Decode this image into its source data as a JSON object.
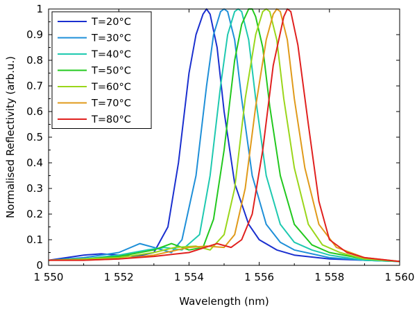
{
  "chart_data": {
    "type": "line",
    "title": "",
    "xlabel": "Wavelength (nm)",
    "ylabel": "Normalised Reflectivity (arb.u.)",
    "xlim": [
      1550,
      1560
    ],
    "ylim": [
      0,
      1
    ],
    "x_ticks": [
      1550,
      1552,
      1554,
      1556,
      1558,
      1560
    ],
    "x_tick_labels": [
      "1 550",
      "1 552",
      "1 554",
      "1 556",
      "1 558",
      "1 560"
    ],
    "y_ticks": [
      0,
      0.1,
      0.2,
      0.3,
      0.4,
      0.5,
      0.6,
      0.7,
      0.8,
      0.9,
      1
    ],
    "y_tick_labels": [
      "0",
      "0.1",
      "0.2",
      "0.3",
      "0.4",
      "0.5",
      "0.6",
      "0.7",
      "0.8",
      "0.9",
      "1"
    ],
    "grid": false,
    "legend_position": "top-left",
    "series": [
      {
        "name": "T=20°C",
        "color": "#1a2fcf",
        "x": [
          1550,
          1551,
          1551.5,
          1552,
          1552.5,
          1553,
          1553.4,
          1553.7,
          1554,
          1554.2,
          1554.4,
          1554.5,
          1554.6,
          1554.8,
          1555,
          1555.3,
          1555.7,
          1556,
          1556.5,
          1557,
          1558,
          1559,
          1560
        ],
        "y": [
          0.02,
          0.04,
          0.045,
          0.04,
          0.035,
          0.05,
          0.15,
          0.4,
          0.75,
          0.9,
          0.98,
          1.0,
          0.98,
          0.85,
          0.6,
          0.32,
          0.16,
          0.1,
          0.06,
          0.04,
          0.025,
          0.02,
          0.015
        ]
      },
      {
        "name": "T=30°C",
        "color": "#1e8fd8",
        "x": [
          1550,
          1551,
          1552,
          1552.6,
          1553,
          1553.5,
          1553.8,
          1554.2,
          1554.5,
          1554.7,
          1554.9,
          1555,
          1555.1,
          1555.3,
          1555.5,
          1555.8,
          1556.2,
          1556.6,
          1557,
          1558,
          1559,
          1560
        ],
        "y": [
          0.02,
          0.03,
          0.05,
          0.085,
          0.07,
          0.05,
          0.1,
          0.35,
          0.7,
          0.9,
          0.99,
          1.0,
          0.99,
          0.88,
          0.65,
          0.35,
          0.16,
          0.09,
          0.06,
          0.03,
          0.02,
          0.015
        ]
      },
      {
        "name": "T=40°C",
        "color": "#1ec9b0",
        "x": [
          1550,
          1551,
          1552,
          1552.8,
          1553.3,
          1553.8,
          1554.3,
          1554.6,
          1554.9,
          1555.1,
          1555.3,
          1555.4,
          1555.5,
          1555.7,
          1555.9,
          1556.2,
          1556.6,
          1557,
          1557.5,
          1558,
          1559,
          1560
        ],
        "y": [
          0.02,
          0.025,
          0.04,
          0.06,
          0.07,
          0.06,
          0.12,
          0.35,
          0.7,
          0.9,
          0.99,
          1.0,
          0.99,
          0.88,
          0.65,
          0.35,
          0.16,
          0.09,
          0.06,
          0.04,
          0.02,
          0.015
        ]
      },
      {
        "name": "T=50°C",
        "color": "#22c81e",
        "x": [
          1550,
          1551,
          1552,
          1553,
          1553.5,
          1554,
          1554.4,
          1554.7,
          1555,
          1555.3,
          1555.5,
          1555.7,
          1555.8,
          1555.9,
          1556.1,
          1556.3,
          1556.6,
          1557,
          1557.5,
          1558,
          1559,
          1560
        ],
        "y": [
          0.02,
          0.025,
          0.035,
          0.06,
          0.085,
          0.06,
          0.07,
          0.18,
          0.45,
          0.8,
          0.94,
          1.0,
          1.0,
          0.97,
          0.85,
          0.62,
          0.35,
          0.16,
          0.08,
          0.05,
          0.025,
          0.015
        ]
      },
      {
        "name": "T=60°C",
        "color": "#9ad61a",
        "x": [
          1550,
          1551,
          1552,
          1553,
          1553.6,
          1554.2,
          1554.6,
          1555,
          1555.3,
          1555.6,
          1555.9,
          1556.1,
          1556.2,
          1556.3,
          1556.5,
          1556.7,
          1557,
          1557.4,
          1557.8,
          1558.3,
          1559,
          1560
        ],
        "y": [
          0.02,
          0.025,
          0.03,
          0.05,
          0.07,
          0.075,
          0.06,
          0.12,
          0.3,
          0.65,
          0.9,
          0.99,
          1.0,
          0.99,
          0.88,
          0.65,
          0.38,
          0.16,
          0.08,
          0.05,
          0.025,
          0.015
        ]
      },
      {
        "name": "T=70°C",
        "color": "#e09a1a",
        "x": [
          1550,
          1551,
          1552,
          1553,
          1554,
          1554.5,
          1555,
          1555.3,
          1555.6,
          1555.9,
          1556.2,
          1556.4,
          1556.5,
          1556.6,
          1556.8,
          1557,
          1557.3,
          1557.7,
          1558.2,
          1559,
          1560
        ],
        "y": [
          0.02,
          0.02,
          0.025,
          0.04,
          0.07,
          0.075,
          0.07,
          0.12,
          0.3,
          0.62,
          0.88,
          0.98,
          1.0,
          0.99,
          0.88,
          0.65,
          0.38,
          0.16,
          0.07,
          0.03,
          0.015
        ]
      },
      {
        "name": "T=80°C",
        "color": "#e0201e",
        "x": [
          1550,
          1551,
          1552,
          1553,
          1554,
          1554.8,
          1555.2,
          1555.5,
          1555.8,
          1556.1,
          1556.4,
          1556.7,
          1556.8,
          1556.9,
          1557.1,
          1557.4,
          1557.7,
          1558,
          1558.5,
          1559,
          1560
        ],
        "y": [
          0.02,
          0.02,
          0.025,
          0.035,
          0.05,
          0.085,
          0.07,
          0.1,
          0.2,
          0.45,
          0.78,
          0.97,
          1.0,
          0.99,
          0.86,
          0.55,
          0.25,
          0.1,
          0.05,
          0.03,
          0.015
        ]
      }
    ]
  }
}
